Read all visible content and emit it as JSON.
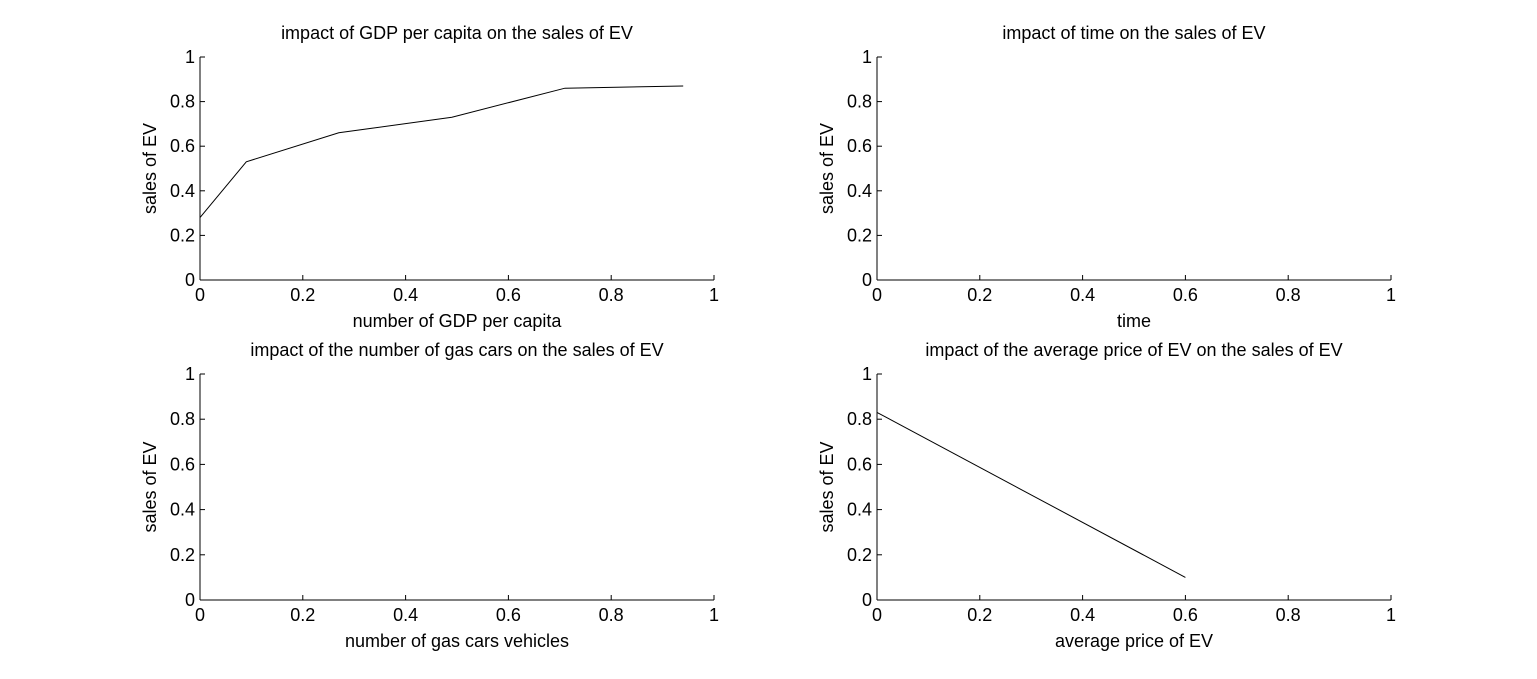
{
  "chart_data": [
    {
      "type": "line",
      "title": "impact of GDP per capita on the sales of EV",
      "xlabel": "number of GDP per capita",
      "ylabel": "sales of EV",
      "xlim": [
        0,
        1
      ],
      "ylim": [
        0,
        1
      ],
      "xticks": [
        "0",
        "0.2",
        "0.4",
        "0.6",
        "0.8",
        "1"
      ],
      "yticks": [
        "0",
        "0.2",
        "0.4",
        "0.6",
        "0.8",
        "1"
      ],
      "grid": false,
      "series": [
        {
          "x": [
            0,
            0.09,
            0.27,
            0.49,
            0.71,
            0.94
          ],
          "y": [
            0.28,
            0.53,
            0.66,
            0.73,
            0.86,
            0.87
          ]
        }
      ],
      "line_color": "#000000"
    },
    {
      "type": "line",
      "title": "impact of time on the sales of EV",
      "xlabel": "time",
      "ylabel": "sales of EV",
      "xlim": [
        0,
        1
      ],
      "ylim": [
        0,
        1
      ],
      "xticks": [
        "0",
        "0.2",
        "0.4",
        "0.6",
        "0.8",
        "1"
      ],
      "yticks": [
        "0",
        "0.2",
        "0.4",
        "0.6",
        "0.8",
        "1"
      ],
      "grid": false,
      "series": [],
      "line_color": "#000000"
    },
    {
      "type": "line",
      "title": "impact of the number of gas cars on the sales of EV",
      "xlabel": "number of gas cars vehicles",
      "ylabel": "sales of EV",
      "xlim": [
        0,
        1
      ],
      "ylim": [
        0,
        1
      ],
      "xticks": [
        "0",
        "0.2",
        "0.4",
        "0.6",
        "0.8",
        "1"
      ],
      "yticks": [
        "0",
        "0.2",
        "0.4",
        "0.6",
        "0.8",
        "1"
      ],
      "grid": false,
      "series": [],
      "line_color": "#000000"
    },
    {
      "type": "line",
      "title": "impact of the average price of EV on the sales of EV",
      "xlabel": "average price of EV",
      "ylabel": "sales of EV",
      "xlim": [
        0,
        1
      ],
      "ylim": [
        0,
        1
      ],
      "xticks": [
        "0",
        "0.2",
        "0.4",
        "0.6",
        "0.8",
        "1"
      ],
      "yticks": [
        "0",
        "0.2",
        "0.4",
        "0.6",
        "0.8",
        "1"
      ],
      "grid": false,
      "series": [
        {
          "x": [
            0,
            0.6
          ],
          "y": [
            0.83,
            0.1
          ]
        }
      ],
      "line_color": "#000000"
    }
  ]
}
